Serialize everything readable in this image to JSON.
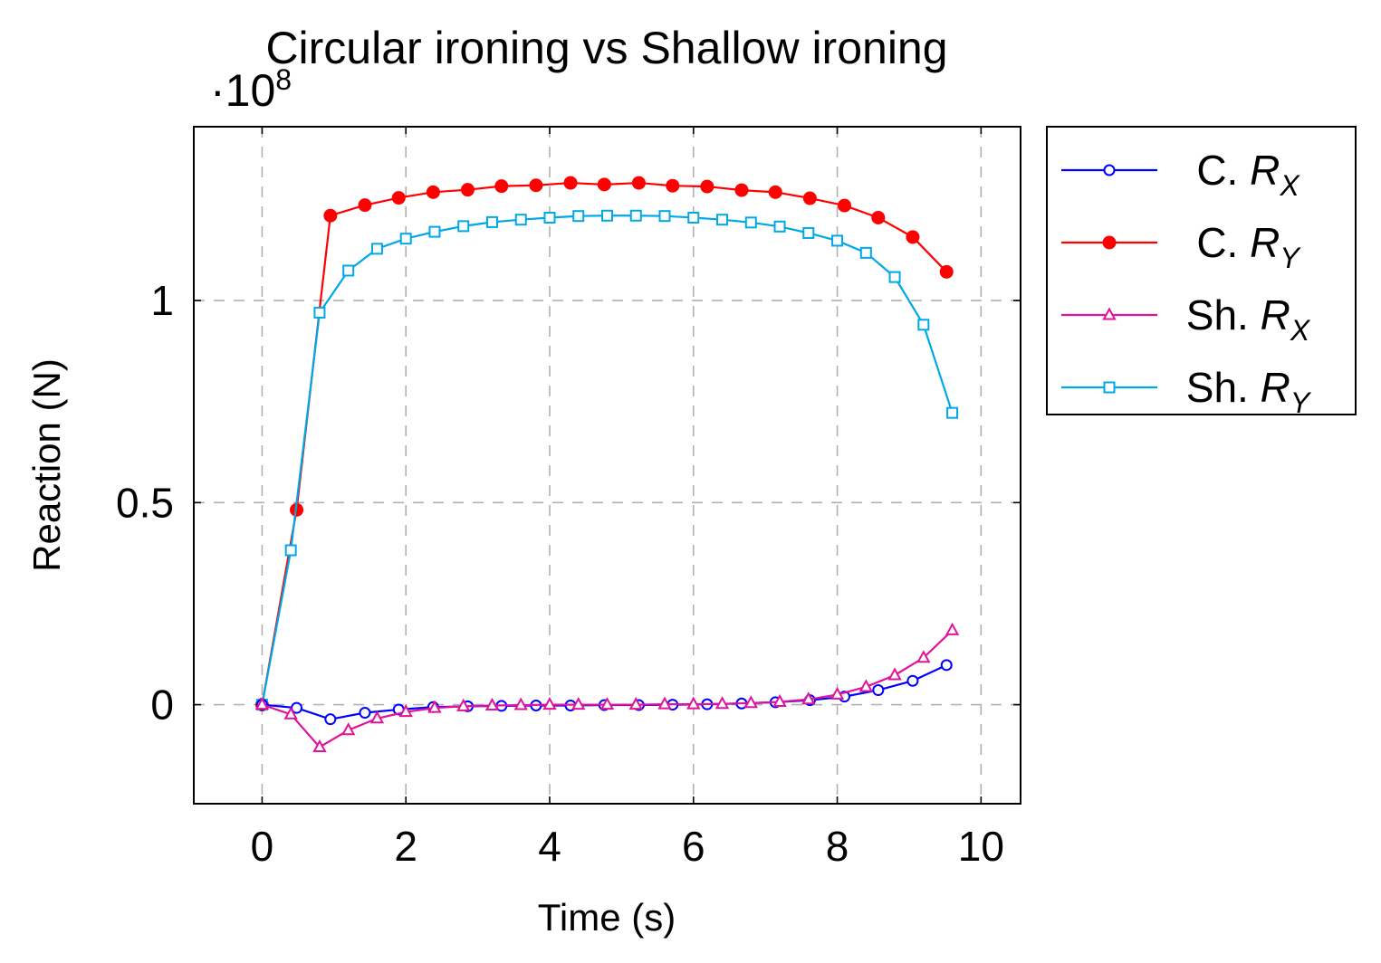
{
  "chart_data": {
    "type": "line",
    "title": "Circular ironing vs Shallow ironing",
    "xlabel": "Time (s)",
    "ylabel": "Reaction (N)",
    "y_multiplier_label": "·10",
    "y_multiplier_exponent": "8",
    "xlim": [
      -0.95,
      10.55
    ],
    "ylim": [
      -0.245,
      1.43
    ],
    "x_ticks": [
      0,
      2,
      4,
      6,
      8,
      10
    ],
    "x_tick_labels": [
      "0",
      "2",
      "4",
      "6",
      "8",
      "10"
    ],
    "y_ticks": [
      0,
      0.5,
      1
    ],
    "y_tick_labels": [
      "0",
      "0.5",
      "1"
    ],
    "grid": true,
    "legend_position": "outside-right",
    "series": [
      {
        "name": "C. R",
        "name_subscript": "X",
        "color": "#0000ff",
        "marker": "circle-open",
        "x": [
          0,
          0.48,
          0.95,
          1.43,
          1.9,
          2.38,
          2.86,
          3.33,
          3.81,
          4.29,
          4.76,
          5.24,
          5.71,
          6.19,
          6.67,
          7.14,
          7.62,
          8.1,
          8.57,
          9.05,
          9.52
        ],
        "y": [
          0,
          -0.008,
          -0.036,
          -0.02,
          -0.012,
          -0.006,
          -0.004,
          -0.003,
          -0.002,
          -0.002,
          -0.001,
          -0.001,
          0,
          0.001,
          0.003,
          0.006,
          0.011,
          0.02,
          0.036,
          0.059,
          0.098
        ]
      },
      {
        "name": "C. R",
        "name_subscript": "Y",
        "color": "#ff0000",
        "marker": "circle-filled",
        "x": [
          0,
          0.48,
          0.95,
          1.43,
          1.9,
          2.38,
          2.86,
          3.33,
          3.81,
          4.29,
          4.76,
          5.24,
          5.71,
          6.19,
          6.67,
          7.14,
          7.62,
          8.1,
          8.57,
          9.05,
          9.52
        ],
        "y": [
          0,
          0.482,
          1.21,
          1.236,
          1.254,
          1.268,
          1.274,
          1.283,
          1.285,
          1.291,
          1.287,
          1.291,
          1.284,
          1.282,
          1.273,
          1.268,
          1.253,
          1.235,
          1.205,
          1.157,
          1.071
        ]
      },
      {
        "name": "Sh. R",
        "name_subscript": "X",
        "color": "#e0139a",
        "marker": "triangle-open",
        "x": [
          0,
          0.4,
          0.8,
          1.2,
          1.6,
          2.0,
          2.4,
          2.8,
          3.2,
          3.6,
          4.0,
          4.4,
          4.8,
          5.2,
          5.6,
          6.0,
          6.4,
          6.8,
          7.2,
          7.6,
          8.0,
          8.4,
          8.8,
          9.2,
          9.6
        ],
        "y": [
          0,
          -0.024,
          -0.105,
          -0.063,
          -0.034,
          -0.018,
          -0.008,
          -0.004,
          -0.002,
          -0.001,
          0,
          0,
          0,
          0,
          0.001,
          0.001,
          0.002,
          0.004,
          0.007,
          0.013,
          0.025,
          0.044,
          0.073,
          0.116,
          0.184
        ]
      },
      {
        "name": "Sh. R",
        "name_subscript": "Y",
        "color": "#00a8e8",
        "marker": "square-open",
        "x": [
          0,
          0.4,
          0.8,
          1.2,
          1.6,
          2.0,
          2.4,
          2.8,
          3.2,
          3.6,
          4.0,
          4.4,
          4.8,
          5.2,
          5.6,
          6.0,
          6.4,
          6.8,
          7.2,
          7.6,
          8.0,
          8.4,
          8.8,
          9.2,
          9.6
        ],
        "y": [
          0,
          0.382,
          0.97,
          1.074,
          1.128,
          1.153,
          1.17,
          1.184,
          1.194,
          1.2,
          1.205,
          1.209,
          1.21,
          1.21,
          1.209,
          1.205,
          1.2,
          1.193,
          1.183,
          1.167,
          1.148,
          1.118,
          1.058,
          0.94,
          0.722
        ]
      }
    ]
  }
}
